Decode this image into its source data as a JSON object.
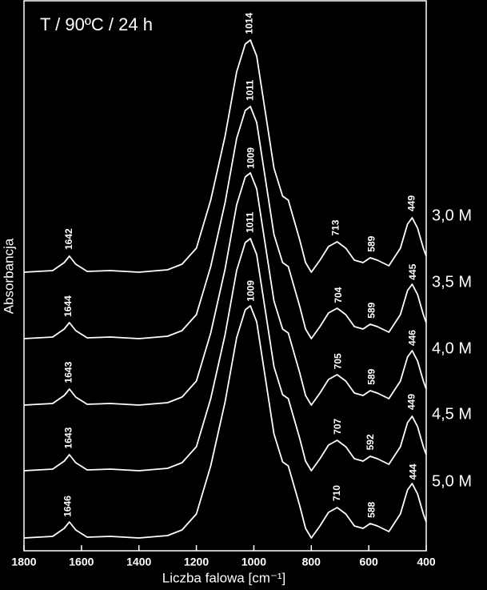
{
  "chart_data": {
    "type": "line",
    "title": "T / 90ºC / 24 h",
    "xlabel": "Liczba falowa [cm⁻¹]",
    "ylabel": "Absorbancja",
    "xlim": [
      1800,
      400
    ],
    "ylim": [
      0,
      688
    ],
    "xticks": [
      1800,
      1600,
      1400,
      1200,
      1000,
      800,
      600,
      400
    ],
    "color": "#ffffff",
    "x": [
      1800,
      1700,
      1660,
      1642,
      1620,
      1580,
      1500,
      1400,
      1300,
      1250,
      1200,
      1150,
      1100,
      1060,
      1030,
      1012,
      990,
      960,
      930,
      900,
      880,
      860,
      840,
      820,
      800,
      770,
      740,
      710,
      680,
      650,
      620,
      595,
      570,
      530,
      490,
      465,
      449,
      430,
      410,
      400
    ],
    "series": [
      {
        "name": "3,0 M",
        "values": [
          348,
          350,
          360,
          368,
          358,
          349,
          350,
          348,
          351,
          358,
          378,
          438,
          518,
          598,
          633,
          638,
          618,
          548,
          478,
          443,
          438,
          413,
          388,
          360,
          348,
          363,
          380,
          386,
          378,
          363,
          360,
          366,
          363,
          356,
          378,
          408,
          416,
          403,
          378,
          368
        ],
        "peaks": [
          1642,
          1014,
          713,
          589,
          449
        ]
      },
      {
        "name": "3,5 M",
        "values": [
          265,
          267,
          277,
          285,
          275,
          266,
          267,
          265,
          268,
          275,
          295,
          355,
          435,
          515,
          550,
          555,
          535,
          465,
          395,
          360,
          355,
          330,
          305,
          277,
          265,
          280,
          297,
          303,
          295,
          280,
          277,
          283,
          280,
          273,
          295,
          325,
          333,
          320,
          295,
          285
        ],
        "peaks": [
          1644,
          1011,
          704,
          589,
          445
        ]
      },
      {
        "name": "4,0 M",
        "values": [
          182,
          184,
          194,
          202,
          192,
          183,
          184,
          182,
          185,
          192,
          212,
          272,
          352,
          432,
          467,
          472,
          452,
          382,
          312,
          277,
          272,
          247,
          222,
          194,
          182,
          197,
          214,
          220,
          212,
          197,
          194,
          200,
          197,
          190,
          212,
          242,
          250,
          237,
          212,
          202
        ],
        "peaks": [
          1643,
          1009,
          705,
          589,
          446
        ]
      },
      {
        "name": "4,5 M",
        "values": [
          100,
          102,
          112,
          120,
          110,
          101,
          102,
          100,
          103,
          110,
          130,
          190,
          270,
          350,
          385,
          390,
          370,
          300,
          230,
          195,
          190,
          165,
          140,
          112,
          100,
          115,
          132,
          138,
          130,
          115,
          112,
          118,
          115,
          108,
          130,
          160,
          168,
          155,
          130,
          120
        ],
        "peaks": [
          1643,
          1011,
          707,
          592,
          449
        ]
      },
      {
        "name": "5,0 M",
        "values": [
          16,
          18,
          28,
          36,
          26,
          17,
          18,
          16,
          19,
          26,
          46,
          106,
          186,
          266,
          301,
          306,
          286,
          216,
          146,
          111,
          106,
          81,
          56,
          28,
          16,
          31,
          48,
          54,
          46,
          31,
          28,
          34,
          31,
          24,
          46,
          76,
          84,
          71,
          46,
          36
        ],
        "peaks": [
          1646,
          1009,
          710,
          588,
          444
        ]
      }
    ]
  }
}
